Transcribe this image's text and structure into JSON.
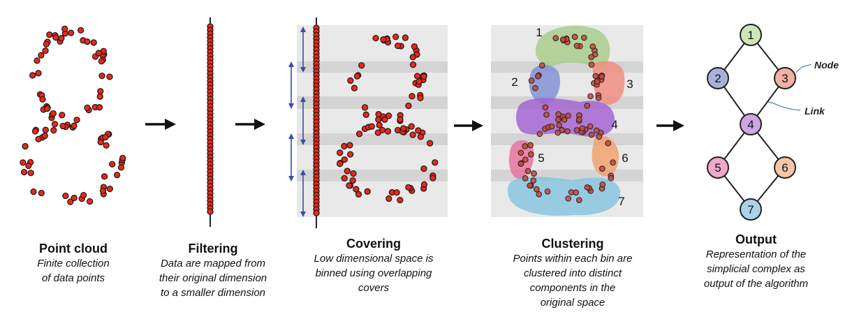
{
  "colors": {
    "point_fill": "#e8291c",
    "point_stroke": "#2a1a18",
    "arrow": "#111111",
    "band": "#e9e9e9",
    "band_dark": "#d4d4d4",
    "cover_arrow": "#3b4ba3",
    "cluster_green": "#a6cc8a",
    "cluster_red": "#ef8c7c",
    "cluster_blue": "#7f8fd6",
    "cluster_purple": "#a262d2",
    "cluster_pink": "#e96e9d",
    "cluster_orange": "#f2a06a",
    "cluster_lightblue": "#86c3e0"
  },
  "stages": [
    {
      "title": "Point cloud",
      "desc": "Finite collection\nof data points"
    },
    {
      "title": "Filtering",
      "desc": "Data are mapped from\ntheir original dimension\nto a smaller dimension"
    },
    {
      "title": "Covering",
      "desc": "Low dimensional space is\nbinned using overlapping\ncovers"
    },
    {
      "title": "Clustering",
      "desc": "Points within each bin are\nclustered into distinct\ncomponents in the\noriginal space"
    },
    {
      "title": "Output",
      "desc": "Representation of the\nsimplicial complex as\noutput of the algorithm"
    }
  ],
  "cluster_labels": [
    "1",
    "2",
    "3",
    "4",
    "5",
    "6",
    "7"
  ],
  "graph": {
    "nodes": [
      {
        "label": "1",
        "color": "#cfe5b6"
      },
      {
        "label": "2",
        "color": "#aab0de"
      },
      {
        "label": "3",
        "color": "#f3b0a5"
      },
      {
        "label": "4",
        "color": "#cba8e3"
      },
      {
        "label": "5",
        "color": "#f1a9c9"
      },
      {
        "label": "6",
        "color": "#f6c6a6"
      },
      {
        "label": "7",
        "color": "#a9d3ea"
      }
    ],
    "edges": [
      [
        0,
        1
      ],
      [
        0,
        2
      ],
      [
        1,
        3
      ],
      [
        2,
        3
      ],
      [
        3,
        4
      ],
      [
        3,
        5
      ],
      [
        4,
        6
      ],
      [
        5,
        6
      ]
    ],
    "annotations": {
      "node": "Node",
      "link": "Link"
    }
  }
}
